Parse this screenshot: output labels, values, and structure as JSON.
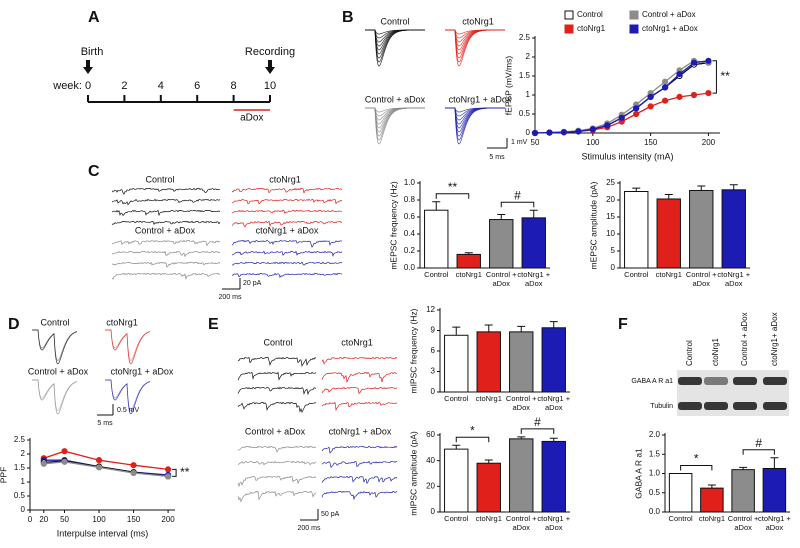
{
  "panel_labels": [
    "A",
    "B",
    "C",
    "D",
    "E",
    "F"
  ],
  "timeline": {
    "start_event": "Birth",
    "end_event": "Recording",
    "unit_label": "week:",
    "weeks": [
      0,
      2,
      4,
      6,
      8,
      10
    ],
    "treatment": "aDox"
  },
  "traces": [
    {
      "labels": [
        "Control",
        "ctoNrg1",
        "Control + aDox",
        "ctoNrg1 + aDox"
      ],
      "scale": [
        "1 mV",
        "5 ms"
      ]
    },
    {
      "labels": [
        "Control",
        "ctoNrg1",
        "Control + aDox",
        "ctoNrg1 + aDox"
      ],
      "scale": [
        "20 pA",
        "200 ms"
      ]
    },
    {
      "labels": [
        "Control",
        "ctoNrg1",
        "Control + aDox",
        "ctoNrg1 + aDox"
      ],
      "scale": [
        "0.5 mV",
        "5 ms"
      ]
    },
    {
      "labels": [
        "Control",
        "ctoNrg1",
        "Control + aDox",
        "ctoNrg1 + aDox"
      ],
      "scale": [
        "50 pA",
        "200 ms"
      ]
    }
  ],
  "blot": {
    "lanes": [
      "Control",
      "ctoNrg1",
      "Control + aDox",
      "ctoNrg1+ aDox"
    ],
    "bands": [
      "GABA A R a1",
      "Tubulin"
    ]
  },
  "chart_data": [
    {
      "type": "line",
      "xlabel": "Stimulus intensity (mA)",
      "ylabel": "fEPSP (mV/ms)",
      "x": [
        50,
        62.5,
        75,
        87.5,
        100,
        112.5,
        125,
        137.5,
        150,
        162.5,
        175,
        187.5,
        200
      ],
      "xlim": [
        50,
        210
      ],
      "xticks": [
        50,
        100,
        150,
        200
      ],
      "ylim": [
        0,
        2.5
      ],
      "yticks": [
        0,
        0.5,
        1,
        1.5,
        2,
        2.5
      ],
      "legend": "top",
      "annotations": [
        "**"
      ],
      "series": [
        {
          "name": "Control",
          "color": "#111111",
          "fill": "#ffffff",
          "values": [
            0,
            0.01,
            0.02,
            0.05,
            0.1,
            0.2,
            0.4,
            0.65,
            0.95,
            1.2,
            1.5,
            1.8,
            1.85
          ]
        },
        {
          "name": "ctoNrg1",
          "color": "#e0201b",
          "values": [
            0,
            0.01,
            0.02,
            0.04,
            0.08,
            0.15,
            0.3,
            0.5,
            0.7,
            0.85,
            0.95,
            1.0,
            1.05
          ]
        },
        {
          "name": "Control + aDox",
          "color": "#8c8c8c",
          "values": [
            0,
            0.01,
            0.03,
            0.06,
            0.12,
            0.25,
            0.48,
            0.75,
            1.05,
            1.35,
            1.65,
            1.9,
            1.85
          ]
        },
        {
          "name": "ctoNrg1 + aDox",
          "color": "#1c1cb4",
          "values": [
            0,
            0.01,
            0.02,
            0.04,
            0.1,
            0.2,
            0.4,
            0.65,
            0.95,
            1.2,
            1.55,
            1.85,
            1.9
          ]
        }
      ]
    },
    {
      "type": "bar",
      "ylabel": "mEPSC frequency (Hz)",
      "categories": [
        "Control",
        "ctoNrg1",
        "Control + aDox",
        "ctoNrg1 + aDox"
      ],
      "values": [
        0.68,
        0.16,
        0.57,
        0.59
      ],
      "errors": [
        0.1,
        0.02,
        0.06,
        0.09
      ],
      "colors": [
        "#ffffff",
        "#e0201b",
        "#8c8c8c",
        "#1c1cb4"
      ],
      "ylim": [
        0,
        1
      ],
      "yticks": [
        {
          "value": 0,
          "label": "0.0"
        },
        0.2,
        0.4,
        0.6,
        0.8,
        {
          "value": 1,
          "label": "1.0"
        }
      ],
      "annotations": [
        "**",
        "#"
      ]
    },
    {
      "type": "bar",
      "ylabel": "mEPSC amplitude (pA)",
      "categories": [
        "Control",
        "ctoNrg1",
        "Control + aDox",
        "ctoNrg1 + aDox"
      ],
      "values": [
        22.5,
        20.3,
        22.8,
        23.0
      ],
      "errors": [
        1,
        1.3,
        1.3,
        1.5
      ],
      "colors": [
        "#ffffff",
        "#e0201b",
        "#8c8c8c",
        "#1c1cb4"
      ],
      "ylim": [
        0,
        25
      ],
      "yticks": [
        0,
        5,
        10,
        15,
        20,
        25
      ],
      "annotations": []
    },
    {
      "type": "line",
      "xlabel": "Interpulse interval (ms)",
      "ylabel": "PPF",
      "x": [
        20,
        50,
        100,
        150,
        200
      ],
      "xlim": [
        0,
        210
      ],
      "xticks": [
        0,
        20,
        50,
        100,
        150,
        200
      ],
      "ylim": [
        0,
        2.5
      ],
      "yticks": [
        0,
        0.5,
        1,
        1.5,
        2,
        2.5
      ],
      "annotations": [
        "**"
      ],
      "series": [
        {
          "color": "#e0201b",
          "values": [
            1.85,
            2.1,
            1.78,
            1.6,
            1.45
          ]
        },
        {
          "color": "#1c1cb4",
          "values": [
            1.78,
            1.78,
            1.55,
            1.35,
            1.25
          ]
        },
        {
          "color": "#111111",
          "fill": "#ffffff",
          "values": [
            1.7,
            1.75,
            1.55,
            1.35,
            1.2
          ]
        },
        {
          "color": "#8c8c8c",
          "values": [
            1.65,
            1.72,
            1.52,
            1.32,
            1.2
          ]
        }
      ]
    },
    {
      "type": "bar",
      "ylabel": "mIPSC frequency (Hz)",
      "categories": [
        "Control",
        "ctoNrg1",
        "Control + aDox",
        "ctoNrg1 + aDox"
      ],
      "values": [
        8.3,
        8.8,
        8.8,
        9.4
      ],
      "errors": [
        1.2,
        1,
        0.8,
        0.9
      ],
      "colors": [
        "#ffffff",
        "#e0201b",
        "#8c8c8c",
        "#1c1cb4"
      ],
      "ylim": [
        0,
        12
      ],
      "yticks": [
        0,
        3,
        6,
        9,
        12
      ],
      "annotations": []
    },
    {
      "type": "bar",
      "ylabel": "mIPSC amplitude (pA)",
      "categories": [
        "Control",
        "ctoNrg1",
        "Control + aDox",
        "ctoNrg1 + aDox"
      ],
      "values": [
        49,
        38,
        57,
        55
      ],
      "errors": [
        3,
        2.5,
        1.5,
        2.5
      ],
      "colors": [
        "#ffffff",
        "#e0201b",
        "#8c8c8c",
        "#1c1cb4"
      ],
      "ylim": [
        0,
        60
      ],
      "yticks": [
        0,
        20,
        40,
        60
      ],
      "annotations": [
        "*",
        "#"
      ]
    },
    {
      "type": "bar",
      "ylabel": "GABA A R a1",
      "categories": [
        "Control",
        "ctoNrg1",
        "Control + aDox",
        "ctoNrg1 + aDox"
      ],
      "values": [
        1.0,
        0.62,
        1.1,
        1.13
      ],
      "errors": [
        0,
        0.08,
        0.06,
        0.28
      ],
      "colors": [
        "#ffffff",
        "#e0201b",
        "#8c8c8c",
        "#1c1cb4"
      ],
      "ylim": [
        0,
        2
      ],
      "yticks": [
        {
          "value": 0,
          "label": "0.0"
        },
        0.5,
        {
          "value": 1,
          "label": "1.0"
        },
        1.5,
        {
          "value": 2,
          "label": "2.0"
        }
      ],
      "annotations": [
        "*",
        "#"
      ]
    }
  ]
}
